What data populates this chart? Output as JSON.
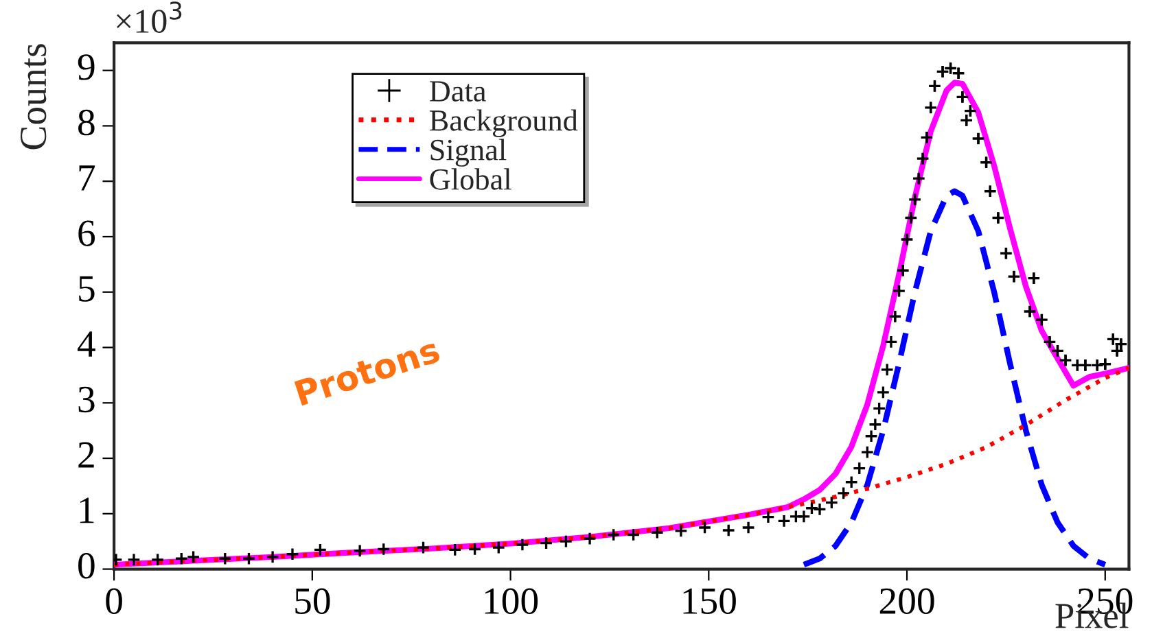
{
  "chart_data": {
    "type": "line",
    "xlabel": "Pixel",
    "ylabel": "Counts",
    "annotations": [
      "×10$^{3}$",
      "Protons"
    ],
    "xlim": [
      0,
      256
    ],
    "xticks": [
      0,
      50,
      100,
      150,
      200,
      250
    ],
    "ylim": [
      0,
      9.5
    ],
    "yticks": [
      0,
      1,
      2,
      3,
      4,
      5,
      6,
      7,
      8,
      9
    ],
    "grid": false,
    "legend": "top left",
    "series": [
      {
        "name": "Data",
        "type": "scatter",
        "color": "#000000",
        "marker": "cross",
        "x": [
          0.5,
          5,
          11,
          17,
          20,
          28,
          34,
          40,
          45,
          52,
          62,
          68,
          78,
          86,
          91,
          97,
          103,
          109,
          114,
          120,
          126,
          131,
          137,
          143,
          149,
          155,
          160,
          165,
          169,
          172,
          174,
          176,
          178,
          181,
          184,
          186,
          188,
          190,
          191,
          192,
          193,
          194,
          195,
          196,
          197,
          198,
          199,
          200,
          201,
          202,
          203,
          204,
          205,
          206,
          207,
          209,
          211,
          213,
          214,
          215,
          216,
          218,
          220,
          221,
          223,
          225,
          227,
          231,
          232,
          234,
          236,
          238,
          240,
          243,
          245,
          248,
          250,
          252,
          253,
          254
        ],
        "values": [
          0.17,
          0.17,
          0.17,
          0.19,
          0.22,
          0.19,
          0.19,
          0.22,
          0.27,
          0.35,
          0.33,
          0.36,
          0.39,
          0.35,
          0.36,
          0.39,
          0.44,
          0.47,
          0.5,
          0.55,
          0.62,
          0.62,
          0.66,
          0.69,
          0.75,
          0.7,
          0.75,
          0.94,
          0.87,
          0.95,
          0.95,
          1.1,
          1.08,
          1.2,
          1.37,
          1.57,
          1.82,
          2.11,
          2.4,
          2.61,
          2.9,
          3.19,
          3.6,
          4.1,
          4.56,
          5.02,
          5.39,
          5.95,
          6.34,
          6.67,
          7.05,
          7.41,
          7.79,
          8.33,
          8.72,
          8.98,
          9.04,
          8.95,
          8.52,
          8.1,
          8.27,
          7.77,
          7.34,
          6.82,
          6.34,
          5.7,
          5.28,
          4.65,
          5.25,
          4.5,
          4.1,
          3.94,
          3.77,
          3.68,
          3.68,
          3.68,
          3.7,
          4.15,
          3.94,
          4.06
        ],
        "errors": [
          null,
          null,
          null,
          null,
          null,
          null,
          null,
          null,
          null,
          null,
          null,
          null,
          null,
          null,
          null,
          null,
          null,
          null,
          null,
          null,
          null,
          null,
          null,
          null,
          null,
          null,
          null,
          null,
          null,
          null,
          null,
          null,
          null,
          null,
          null,
          null,
          null,
          null,
          null,
          null,
          null,
          null,
          null,
          null,
          0.1,
          0.1,
          0.1,
          0.1,
          0.1,
          0.1,
          0.1,
          0.1,
          0.1,
          0.1,
          0.1,
          0.1,
          0.1,
          0.1,
          0.1,
          0.1,
          0.1,
          0.1,
          0.1,
          0.1,
          0.1,
          0.1,
          0.1,
          0.1,
          0.1,
          0.1,
          0.1,
          0.1,
          0.1,
          0.1,
          0.1,
          0.1,
          0.1,
          0.1,
          0.1,
          0.1
        ]
      },
      {
        "name": "Background",
        "color": "#ff0000",
        "line_style": "dotted",
        "x": [
          0,
          20,
          40,
          60,
          80,
          100,
          120,
          140,
          150,
          160,
          170,
          180,
          190,
          200,
          210,
          220,
          230,
          240,
          250,
          256
        ],
        "values": [
          0.08,
          0.15,
          0.22,
          0.3,
          0.37,
          0.46,
          0.58,
          0.74,
          0.86,
          0.98,
          1.12,
          1.27,
          1.45,
          1.66,
          1.9,
          2.2,
          2.6,
          3.05,
          3.45,
          3.63
        ]
      },
      {
        "name": "Signal",
        "color": "#0000ff",
        "line_style": "dashed",
        "x": [
          174,
          178,
          182,
          186,
          190,
          194,
          198,
          202,
          206,
          210,
          212,
          214,
          218,
          222,
          226,
          230,
          234,
          238,
          242,
          246,
          250
        ],
        "values": [
          0.08,
          0.19,
          0.42,
          0.84,
          1.52,
          2.5,
          3.71,
          5.0,
          6.1,
          6.74,
          6.82,
          6.74,
          6.1,
          5.0,
          3.71,
          2.5,
          1.52,
          0.84,
          0.42,
          0.19,
          0.08
        ]
      },
      {
        "name": "Global",
        "color": "#ff00ff",
        "line_style": "solid",
        "x": [
          0,
          20,
          40,
          60,
          80,
          100,
          120,
          140,
          150,
          160,
          170,
          174,
          178,
          182,
          186,
          190,
          194,
          198,
          202,
          206,
          210,
          212,
          214,
          218,
          222,
          226,
          230,
          234,
          238,
          242,
          246,
          250,
          256
        ],
        "values": [
          0.08,
          0.15,
          0.22,
          0.3,
          0.37,
          0.46,
          0.58,
          0.74,
          0.86,
          0.98,
          1.12,
          1.26,
          1.43,
          1.72,
          2.21,
          2.97,
          4.03,
          5.32,
          6.71,
          7.9,
          8.64,
          8.78,
          8.76,
          8.24,
          7.28,
          6.15,
          5.1,
          4.3,
          3.8,
          3.31,
          3.47,
          3.53,
          3.63
        ]
      }
    ]
  }
}
